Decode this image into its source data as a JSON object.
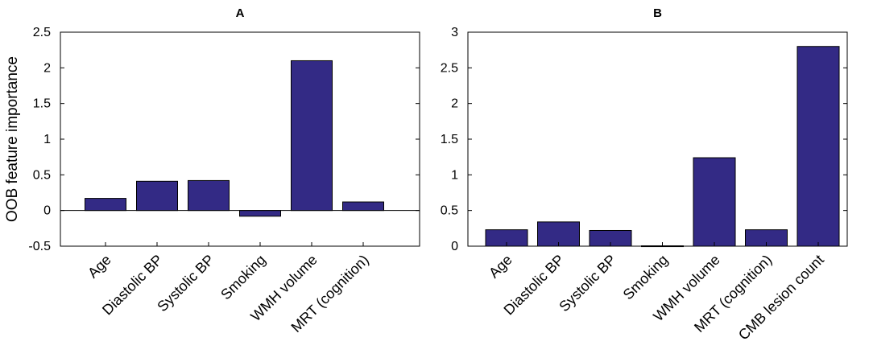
{
  "chart_data": [
    {
      "type": "bar",
      "title": "A",
      "ylabel": "OOB feature importance",
      "xlabel": "",
      "ylim": [
        -0.5,
        2.5
      ],
      "yticks": [
        -0.5,
        0,
        0.5,
        1,
        1.5,
        2,
        2.5
      ],
      "ytick_labels": [
        "-0.5",
        "0",
        "0.5",
        "1",
        "1.5",
        "2",
        "2.5"
      ],
      "categories": [
        "Age",
        "Diastolic BP",
        "Systolic BP",
        "Smoking",
        "WMH volume",
        "MRT (cognition)"
      ],
      "values": [
        0.17,
        0.41,
        0.42,
        -0.08,
        2.1,
        0.12
      ],
      "grid": false,
      "bar_color": "#332a85"
    },
    {
      "type": "bar",
      "title": "B",
      "ylabel": "",
      "xlabel": "",
      "ylim": [
        0,
        3
      ],
      "yticks": [
        0,
        0.5,
        1,
        1.5,
        2,
        2.5,
        3
      ],
      "ytick_labels": [
        "0",
        "0.5",
        "1",
        "1.5",
        "2",
        "2.5",
        "3"
      ],
      "categories": [
        "Age",
        "Diastolic BP",
        "Systolic BP",
        "Smoking",
        "WMH volume",
        "MRT (cognition)",
        "CMB lesion count"
      ],
      "values": [
        0.23,
        0.34,
        0.22,
        0.005,
        1.24,
        0.23,
        2.8
      ],
      "grid": false,
      "bar_color": "#332a85"
    }
  ]
}
